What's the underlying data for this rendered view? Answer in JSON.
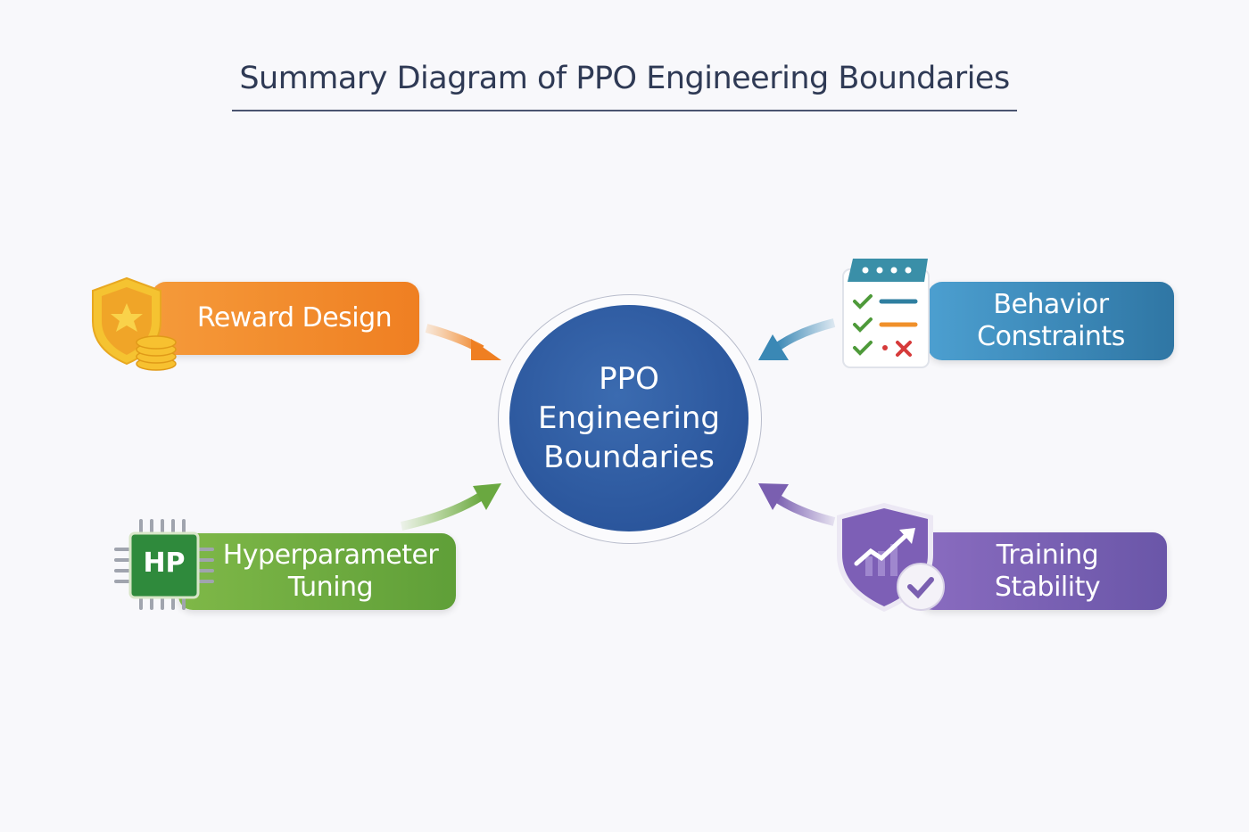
{
  "title": "Summary Diagram of PPO Engineering Boundaries",
  "center": {
    "line1": "PPO",
    "line2": "Engineering",
    "line3": "Boundaries",
    "color": "#2d5a9e"
  },
  "nodes": {
    "reward": {
      "label": "Reward Design",
      "icon": "shield-star-coins-icon",
      "color": "#f08a30"
    },
    "hyperparameter": {
      "line1": "Hyperparameter",
      "line2": "Tuning",
      "icon_text": "HP",
      "icon": "chip-icon",
      "color": "#6aa840"
    },
    "behavior": {
      "line1": "Behavior",
      "line2": "Constraints",
      "icon": "checklist-icon",
      "color": "#3a88b5"
    },
    "training": {
      "line1": "Training",
      "line2": "Stability",
      "icon": "shield-chart-check-icon",
      "color": "#7a5fb0"
    }
  }
}
